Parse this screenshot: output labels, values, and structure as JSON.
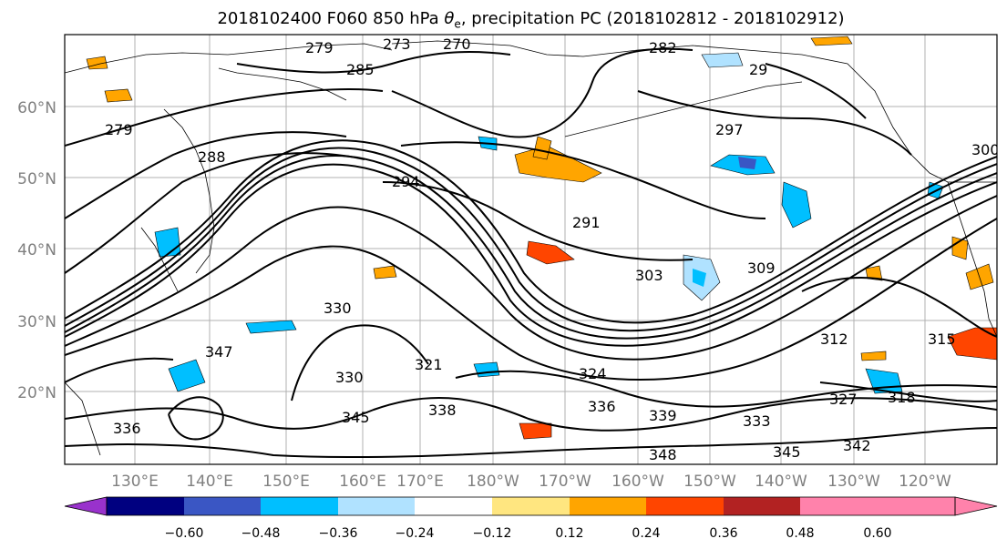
{
  "title": {
    "prefix": "2018102400 F060 850 hPa ",
    "symbol": "θ",
    "symbol_sub": "e",
    "suffix": ", precipitation PC (2018102812 - 2018102912)"
  },
  "map": {
    "lat_labels": [
      "60°N",
      "50°N",
      "40°N",
      "30°N",
      "20°N"
    ],
    "lon_labels": [
      "130°E",
      "140°E",
      "150°E",
      "160°E",
      "170°E",
      "180°W",
      "170°W",
      "160°W",
      "150°W",
      "140°W",
      "130°W",
      "120°W"
    ],
    "tick_label_color": "#808080",
    "grid_color": "#b0b0b0",
    "contour_labels": [
      "279",
      "273",
      "270",
      "282",
      "285",
      "29",
      "279",
      "288",
      "294",
      "297",
      "291",
      "303",
      "309",
      "300",
      "312",
      "315",
      "318",
      "327",
      "330",
      "321",
      "324",
      "336",
      "339",
      "333",
      "345",
      "348",
      "342",
      "345",
      "336",
      "338",
      "347",
      "330"
    ]
  },
  "colorbar": {
    "tick_labels": [
      "−0.60",
      "−0.48",
      "−0.36",
      "−0.24",
      "−0.12",
      "0.12",
      "0.24",
      "0.36",
      "0.48",
      "0.60"
    ],
    "colors": [
      "#9932cc",
      "#000080",
      "#3a56c4",
      "#00bfff",
      "#b0e2ff",
      "#ffffff",
      "#ffe680",
      "#ffa500",
      "#ff4500",
      "#b22222",
      "#ff82ab",
      "#ff82ab"
    ]
  }
}
